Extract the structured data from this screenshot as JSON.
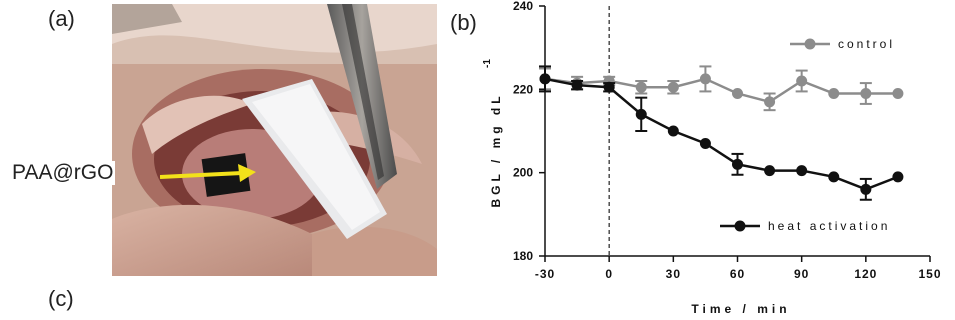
{
  "panels": {
    "a_label": "(a)",
    "b_label": "(b)",
    "c_label": "(c)"
  },
  "photo": {
    "annotation": "PAA@rGO",
    "arrow_color": "#f2e11a"
  },
  "chart_data": {
    "type": "line",
    "xlabel": "Time / min",
    "ylabel": "BGL / mg dL",
    "ylabel_superscript": "-1",
    "xlim": [
      -30,
      150
    ],
    "ylim": [
      180,
      240
    ],
    "xticks": [
      -30,
      0,
      30,
      60,
      90,
      120,
      150
    ],
    "yticks": [
      180,
      200,
      220,
      240
    ],
    "xtick_labels": [
      "-30",
      "0",
      "30",
      "60",
      "90",
      "120",
      "150"
    ],
    "ytick_labels": [
      "180",
      "200",
      "220",
      "240"
    ],
    "vertical_dashed_line_x": 0,
    "legend": [
      {
        "name": "control",
        "color": "#8c8c8c",
        "position": "top-right"
      },
      {
        "name": "heat activation",
        "color": "#111111",
        "position": "bottom-right"
      }
    ],
    "series": [
      {
        "name": "control",
        "color": "#8c8c8c",
        "x": [
          -30,
          -15,
          0,
          15,
          30,
          45,
          60,
          75,
          90,
          105,
          120,
          135
        ],
        "y": [
          222.5,
          221.5,
          222,
          220.5,
          220.5,
          222.5,
          219,
          217,
          222,
          219,
          219,
          219
        ],
        "err": [
          2.5,
          1.5,
          1,
          1.5,
          1.5,
          3,
          0,
          2,
          2.5,
          0,
          2.5,
          0
        ]
      },
      {
        "name": "heat activation",
        "color": "#111111",
        "x": [
          -30,
          -15,
          0,
          15,
          30,
          45,
          60,
          75,
          90,
          105,
          120,
          135
        ],
        "y": [
          222.5,
          221,
          220.5,
          214,
          210,
          207,
          202,
          200.5,
          200.5,
          199,
          196,
          199
        ],
        "err": [
          3,
          1,
          1,
          4,
          0,
          0,
          2.5,
          0,
          0,
          0,
          2.5,
          0
        ]
      }
    ]
  }
}
